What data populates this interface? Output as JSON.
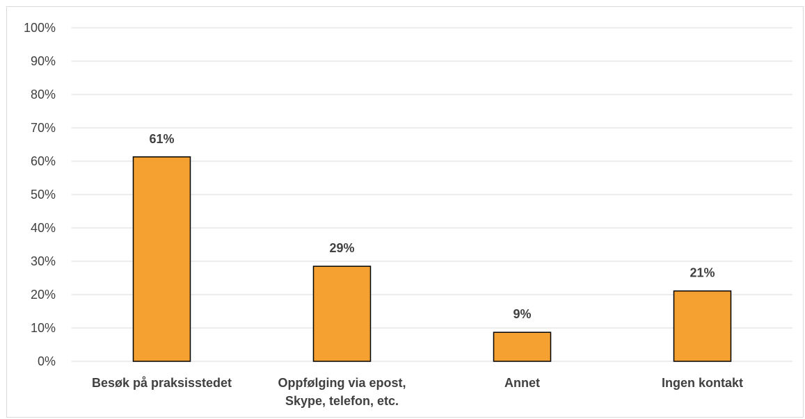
{
  "chart_data": {
    "type": "bar",
    "title": "",
    "xlabel": "",
    "ylabel": "",
    "categories": [
      [
        "Besøk på praksisstedet"
      ],
      [
        "Oppfølging via epost,",
        "Skype, telefon, etc."
      ],
      [
        "Annet"
      ],
      [
        "Ingen kontakt"
      ]
    ],
    "values": [
      61.3,
      28.5,
      8.7,
      21.1
    ],
    "data_labels": [
      "61%",
      "29%",
      "9%",
      "21%"
    ],
    "ylim": [
      0,
      100
    ],
    "yticks": [
      0,
      10,
      20,
      30,
      40,
      50,
      60,
      70,
      80,
      90,
      100
    ],
    "ytick_labels": [
      "0%",
      "10%",
      "20%",
      "30%",
      "40%",
      "50%",
      "60%",
      "70%",
      "80%",
      "90%",
      "100%"
    ],
    "grid": true,
    "legend": "none",
    "colors": {
      "bar_fill": "#F4A132",
      "bar_stroke": "#000000",
      "gridline": "#d9d9d9",
      "text": "#404040"
    }
  }
}
